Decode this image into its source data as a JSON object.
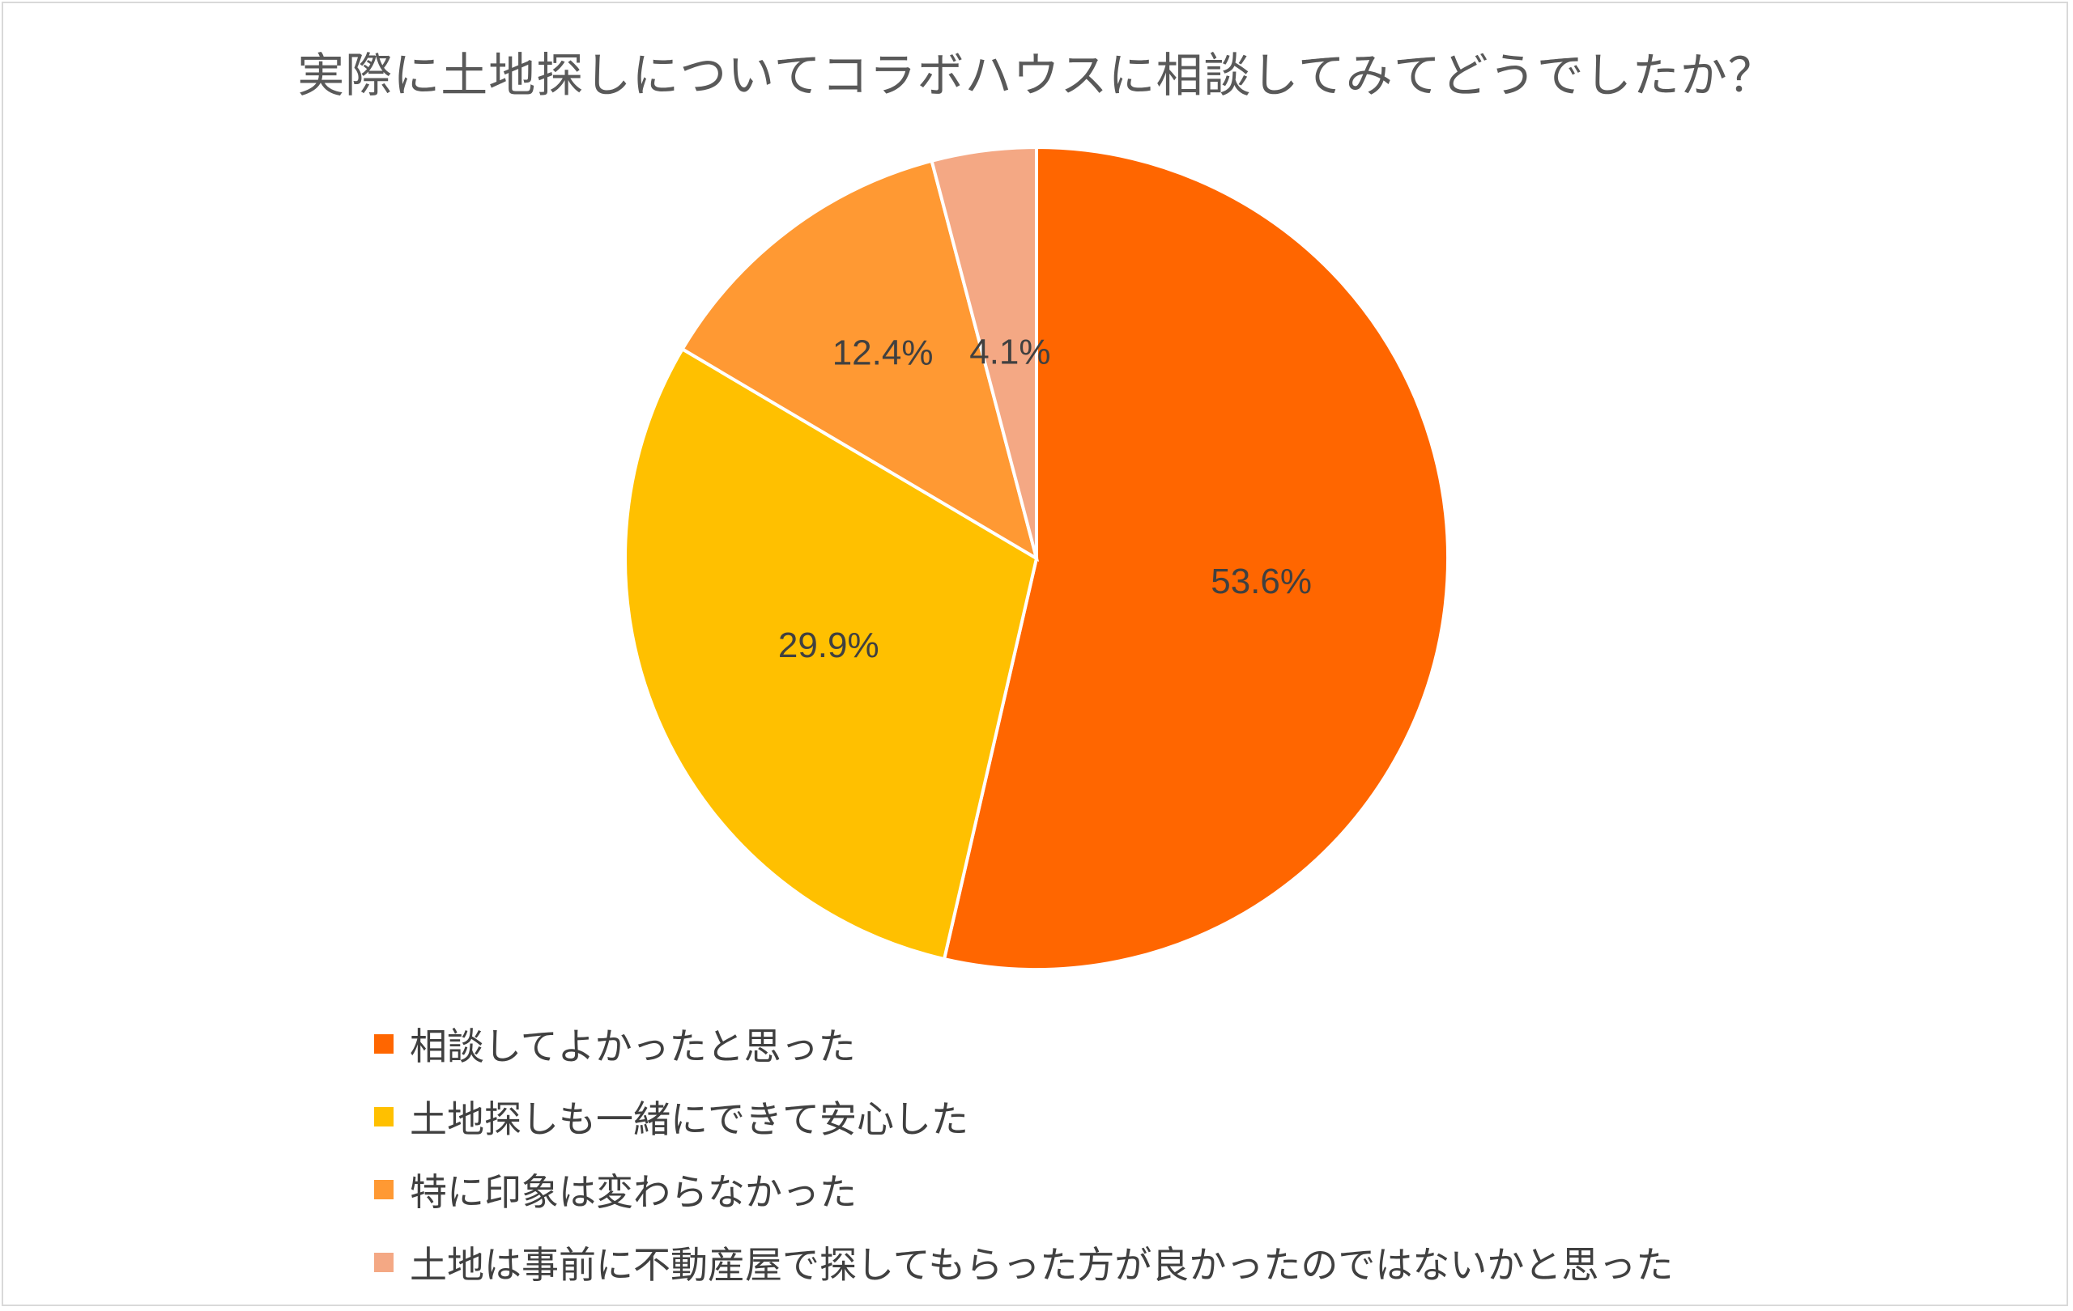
{
  "chart_data": {
    "type": "pie",
    "title": "実際に土地探しについてコラボハウスに相談してみてどうでしたか？",
    "categories": [
      "相談してよかったと思った",
      "土地探しも一緒にできて安心した",
      "特に印象は変わらなかった",
      "土地は事前に不動産屋で探してもらった方が良かったのではないかと思った"
    ],
    "values": [
      53.6,
      29.9,
      12.4,
      4.1
    ],
    "labels": [
      "53.6%",
      "29.9%",
      "12.4%",
      "4.1%"
    ],
    "colors": [
      "#ff6600",
      "#ffc000",
      "#ff9933",
      "#f4a884"
    ],
    "legend_position": "bottom-left"
  }
}
